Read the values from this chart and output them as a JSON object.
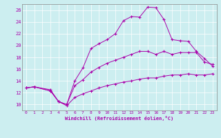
{
  "xlabel": "Windchill (Refroidissement éolien,°C)",
  "bg_color": "#cceef0",
  "line_color": "#aa00aa",
  "xlim": [
    -0.5,
    23.5
  ],
  "ylim": [
    9,
    27
  ],
  "xticks": [
    0,
    1,
    2,
    3,
    4,
    5,
    6,
    7,
    8,
    9,
    10,
    11,
    12,
    13,
    14,
    15,
    16,
    17,
    18,
    19,
    20,
    21,
    22,
    23
  ],
  "yticks": [
    10,
    12,
    14,
    16,
    18,
    20,
    22,
    24,
    26
  ],
  "curve1_x": [
    0,
    1,
    3,
    4,
    5,
    6,
    7,
    8,
    9,
    10,
    11,
    12,
    13,
    14,
    15,
    16,
    17,
    18,
    19,
    20,
    21,
    22,
    23
  ],
  "curve1_y": [
    12.8,
    13.0,
    12.5,
    10.5,
    10.0,
    14.0,
    16.2,
    19.5,
    20.3,
    21.0,
    22.0,
    24.2,
    24.9,
    24.8,
    26.5,
    26.4,
    24.4,
    21.0,
    20.8,
    20.7,
    19.0,
    17.8,
    16.5
  ],
  "curve2_x": [
    0,
    1,
    3,
    4,
    5,
    6,
    7,
    8,
    9,
    10,
    11,
    12,
    13,
    14,
    15,
    16,
    17,
    18,
    19,
    20,
    21,
    22,
    23
  ],
  "curve2_y": [
    12.8,
    13.0,
    12.3,
    10.5,
    10.0,
    13.2,
    14.2,
    15.5,
    16.3,
    17.0,
    17.5,
    18.0,
    18.5,
    19.0,
    19.0,
    18.5,
    19.0,
    18.5,
    18.8,
    18.8,
    18.8,
    17.2,
    16.8
  ],
  "curve3_x": [
    0,
    1,
    3,
    4,
    5,
    6,
    7,
    8,
    9,
    10,
    11,
    12,
    13,
    14,
    15,
    16,
    17,
    18,
    19,
    20,
    21,
    22,
    23
  ],
  "curve3_y": [
    12.8,
    13.0,
    12.3,
    10.5,
    9.8,
    11.2,
    11.8,
    12.3,
    12.8,
    13.2,
    13.5,
    13.8,
    14.0,
    14.3,
    14.5,
    14.5,
    14.8,
    15.0,
    15.0,
    15.2,
    15.0,
    15.0,
    15.2
  ]
}
